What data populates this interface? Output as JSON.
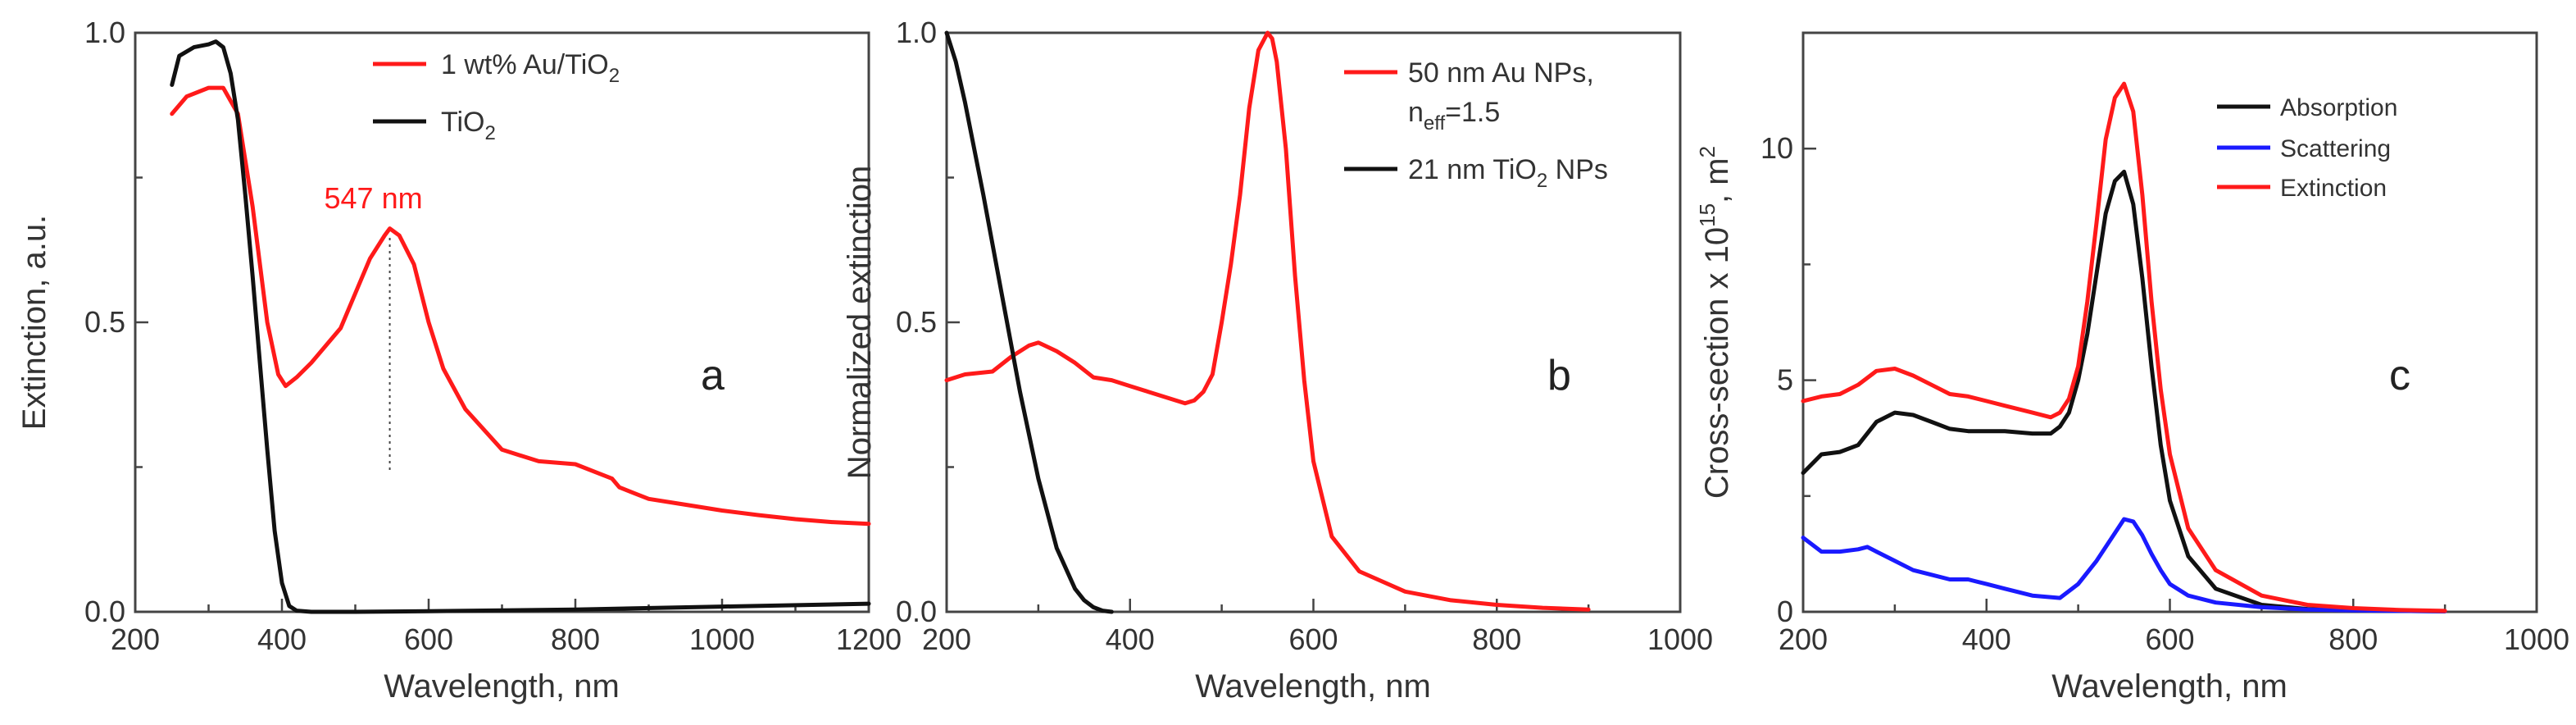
{
  "chart_data": [
    {
      "type": "line",
      "panel_label": "a",
      "xlabel": "Wavelength, nm",
      "ylabel": "Extinction, a.u.",
      "xlim": [
        200,
        1200
      ],
      "ylim": [
        0,
        1.0
      ],
      "xticks": [
        200,
        400,
        600,
        800,
        1000,
        1200
      ],
      "xtick_labels": [
        "200",
        "400",
        "600",
        "800",
        "1000",
        "1200"
      ],
      "yticks": [
        0,
        0.5,
        1.0
      ],
      "ytick_labels": [
        "0.0",
        "0.5",
        "1.0"
      ],
      "legend": {
        "position": "top-right"
      },
      "annotation": {
        "text": "547 nm",
        "x": 547,
        "y": 0.66,
        "dotted_line_to_y": 0.24
      },
      "series": [
        {
          "name": "1 wt% Au/TiO",
          "subscript": "2",
          "color": "#ff1a1a",
          "x": [
            250,
            270,
            300,
            320,
            340,
            360,
            380,
            395,
            405,
            420,
            440,
            460,
            480,
            500,
            520,
            540,
            547,
            560,
            580,
            600,
            620,
            650,
            700,
            750,
            800,
            830,
            850,
            860,
            880,
            900,
            950,
            1000,
            1050,
            1100,
            1150,
            1200
          ],
          "values": [
            0.86,
            0.89,
            0.905,
            0.905,
            0.86,
            0.7,
            0.5,
            0.41,
            0.39,
            0.405,
            0.43,
            0.46,
            0.49,
            0.55,
            0.61,
            0.65,
            0.662,
            0.65,
            0.6,
            0.5,
            0.42,
            0.35,
            0.28,
            0.26,
            0.255,
            0.24,
            0.23,
            0.215,
            0.205,
            0.195,
            0.185,
            0.175,
            0.167,
            0.16,
            0.155,
            0.152
          ]
        },
        {
          "name": "TiO",
          "subscript": "2",
          "color": "#111111",
          "x": [
            250,
            260,
            280,
            300,
            310,
            320,
            330,
            340,
            350,
            360,
            370,
            380,
            390,
            400,
            410,
            420,
            440,
            500,
            600,
            800,
            1000,
            1200
          ],
          "values": [
            0.91,
            0.96,
            0.975,
            0.98,
            0.985,
            0.975,
            0.93,
            0.85,
            0.72,
            0.58,
            0.43,
            0.28,
            0.14,
            0.05,
            0.01,
            0.002,
            0.0,
            0.0,
            0.001,
            0.004,
            0.009,
            0.014
          ]
        }
      ]
    },
    {
      "type": "line",
      "panel_label": "b",
      "xlabel": "Wavelength, nm",
      "ylabel": "Normalized extinction",
      "xlim": [
        200,
        1000
      ],
      "ylim": [
        0,
        1.0
      ],
      "xticks": [
        200,
        400,
        600,
        800,
        1000
      ],
      "xtick_labels": [
        "200",
        "400",
        "600",
        "800",
        "1000"
      ],
      "yticks": [
        0,
        0.5,
        1.0
      ],
      "ytick_labels": [
        "0.0",
        "0.5",
        "1.0"
      ],
      "legend": {
        "position": "top-right"
      },
      "series": [
        {
          "name": "50 nm Au NPs,",
          "name_line2": "n",
          "name_line2_sub": "eff",
          "name_line2_rest": "=1.5",
          "color": "#ff1a1a",
          "x": [
            200,
            220,
            250,
            270,
            290,
            300,
            320,
            340,
            360,
            380,
            400,
            420,
            440,
            460,
            470,
            480,
            490,
            500,
            510,
            520,
            530,
            540,
            550,
            555,
            560,
            570,
            580,
            590,
            600,
            620,
            650,
            700,
            750,
            800,
            850,
            900
          ],
          "values": [
            0.4,
            0.41,
            0.415,
            0.44,
            0.46,
            0.465,
            0.45,
            0.43,
            0.405,
            0.4,
            0.39,
            0.38,
            0.37,
            0.36,
            0.365,
            0.38,
            0.41,
            0.5,
            0.6,
            0.72,
            0.87,
            0.97,
            1.0,
            0.99,
            0.95,
            0.8,
            0.58,
            0.4,
            0.26,
            0.13,
            0.07,
            0.035,
            0.02,
            0.012,
            0.007,
            0.004
          ]
        },
        {
          "name": "21 nm TiO",
          "subscript": "2",
          "name_rest": " NPs",
          "color": "#111111",
          "x": [
            200,
            210,
            220,
            240,
            260,
            280,
            300,
            320,
            340,
            350,
            360,
            370,
            380
          ],
          "values": [
            1.0,
            0.95,
            0.88,
            0.72,
            0.55,
            0.38,
            0.23,
            0.11,
            0.04,
            0.02,
            0.008,
            0.002,
            0.0
          ]
        }
      ]
    },
    {
      "type": "line",
      "panel_label": "c",
      "xlabel": "Wavelength, nm",
      "ylabel": "Cross-section x 10",
      "ylabel_sup": "15",
      "ylabel_rest": ", m",
      "ylabel_sup2": "2",
      "xlim": [
        200,
        1000
      ],
      "ylim": [
        0,
        12.5
      ],
      "xticks": [
        200,
        400,
        600,
        800,
        1000
      ],
      "xtick_labels": [
        "200",
        "400",
        "600",
        "800",
        "1000"
      ],
      "yticks": [
        0,
        5,
        10
      ],
      "ytick_labels": [
        "0",
        "5",
        "10"
      ],
      "legend": {
        "position": "top-right"
      },
      "series": [
        {
          "name": "Absorption",
          "color": "#111111",
          "x": [
            200,
            220,
            240,
            260,
            280,
            300,
            320,
            340,
            360,
            380,
            400,
            420,
            450,
            470,
            480,
            490,
            500,
            510,
            520,
            530,
            540,
            550,
            560,
            570,
            580,
            590,
            600,
            620,
            650,
            700,
            750,
            800,
            850,
            900
          ],
          "values": [
            3.0,
            3.4,
            3.45,
            3.6,
            4.1,
            4.3,
            4.25,
            4.1,
            3.95,
            3.9,
            3.9,
            3.9,
            3.85,
            3.85,
            4.0,
            4.3,
            5.0,
            6.0,
            7.3,
            8.6,
            9.3,
            9.5,
            8.8,
            7.2,
            5.3,
            3.6,
            2.4,
            1.2,
            0.5,
            0.15,
            0.06,
            0.03,
            0.02,
            0.01
          ]
        },
        {
          "name": "Scattering",
          "color": "#1a1aff",
          "x": [
            200,
            220,
            240,
            260,
            270,
            280,
            300,
            320,
            340,
            360,
            380,
            400,
            420,
            450,
            480,
            500,
            520,
            540,
            550,
            560,
            570,
            580,
            590,
            600,
            620,
            650,
            700,
            750,
            800,
            850,
            900
          ],
          "values": [
            1.6,
            1.3,
            1.3,
            1.35,
            1.4,
            1.3,
            1.1,
            0.9,
            0.8,
            0.7,
            0.7,
            0.6,
            0.5,
            0.35,
            0.3,
            0.6,
            1.1,
            1.7,
            2.0,
            1.95,
            1.65,
            1.25,
            0.9,
            0.6,
            0.35,
            0.2,
            0.1,
            0.05,
            0.03,
            0.02,
            0.01
          ]
        },
        {
          "name": "Extinction",
          "color": "#ff1a1a",
          "x": [
            200,
            220,
            240,
            260,
            280,
            300,
            320,
            340,
            360,
            380,
            400,
            420,
            450,
            470,
            480,
            490,
            500,
            510,
            520,
            530,
            540,
            550,
            560,
            570,
            580,
            590,
            600,
            620,
            650,
            700,
            750,
            800,
            850,
            900
          ],
          "values": [
            4.55,
            4.65,
            4.7,
            4.9,
            5.2,
            5.25,
            5.1,
            4.9,
            4.7,
            4.65,
            4.55,
            4.45,
            4.3,
            4.2,
            4.3,
            4.6,
            5.3,
            6.7,
            8.4,
            10.2,
            11.1,
            11.4,
            10.8,
            9.0,
            6.7,
            4.8,
            3.4,
            1.8,
            0.9,
            0.35,
            0.15,
            0.08,
            0.04,
            0.02
          ]
        }
      ]
    }
  ]
}
